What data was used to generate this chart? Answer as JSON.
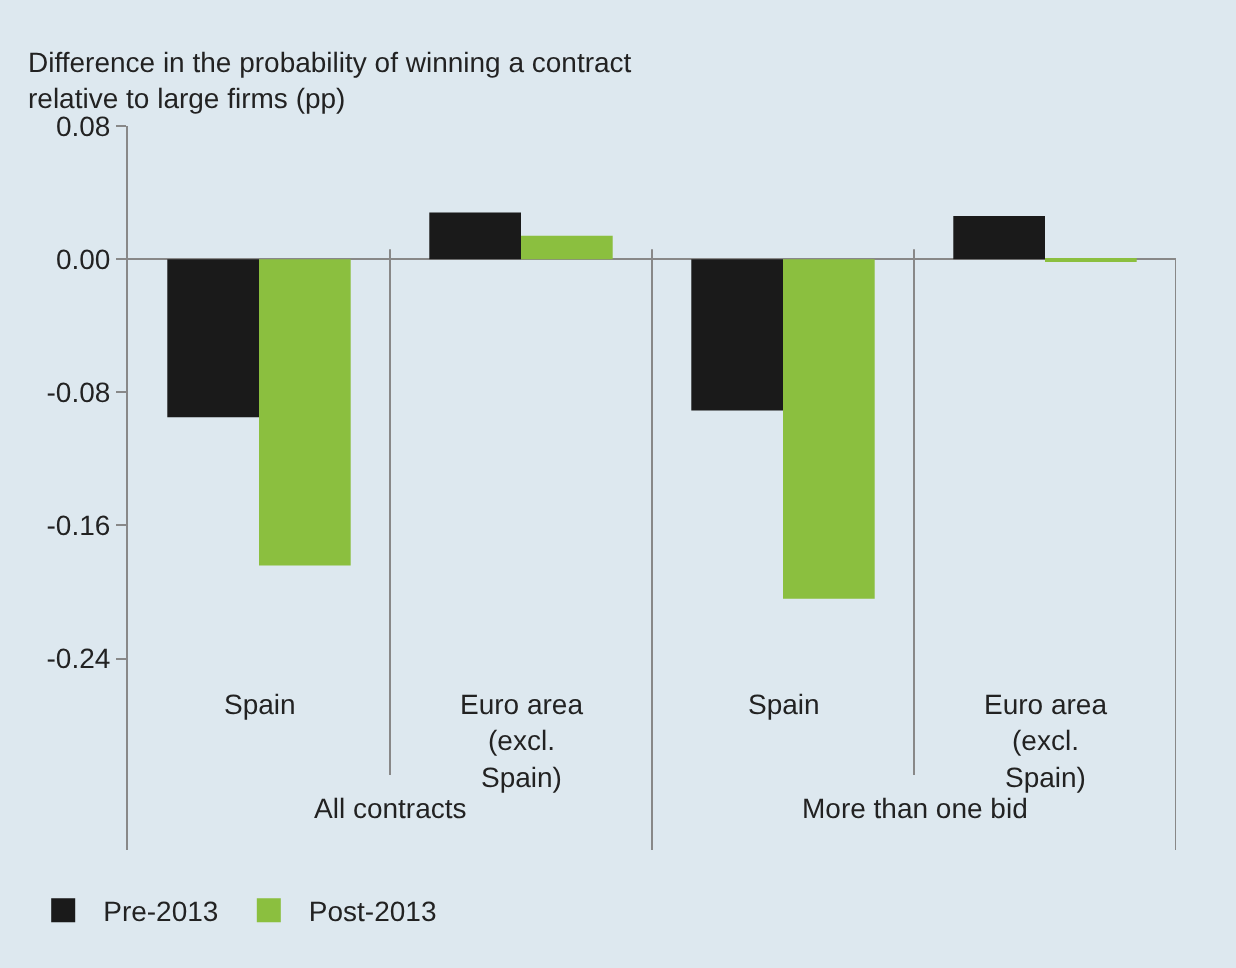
{
  "chart_data": {
    "type": "bar",
    "ylabel": "Difference in the probability of winning a contract relative to large firms (pp)",
    "categories": [
      "Spain",
      "Euro area (excl. Spain)",
      "Spain",
      "Euro area (excl. Spain)"
    ],
    "annotations": [
      "All contracts",
      "More than one bid"
    ],
    "series": [
      {
        "name": "Pre-2013",
        "color": "#1a1a1a",
        "values": [
          -0.095,
          0.028,
          -0.091,
          0.026
        ]
      },
      {
        "name": "Post-2013",
        "color": "#8bbf3f",
        "values": [
          -0.184,
          0.014,
          -0.204,
          -0.001
        ]
      }
    ],
    "ylim": [
      -0.355,
      0.08
    ],
    "yticks": [
      {
        "value": 0.08,
        "label": "0.08"
      },
      {
        "value": 0.0,
        "label": "0.00"
      },
      {
        "value": -0.08,
        "label": "-0.08"
      },
      {
        "value": -0.16,
        "label": "-0.16"
      },
      {
        "value": -0.24,
        "label": "-0.24"
      }
    ],
    "legend": "bottom left"
  }
}
